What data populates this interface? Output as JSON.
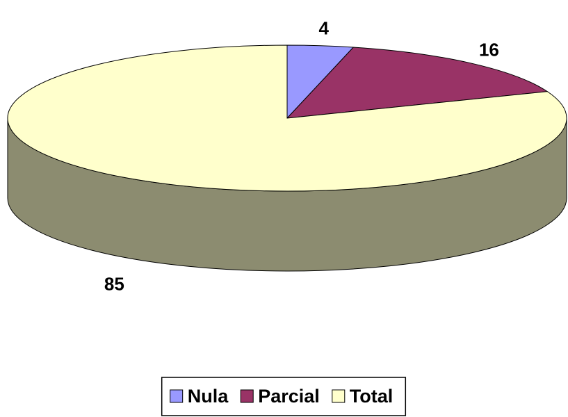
{
  "chart_data": {
    "type": "pie3d",
    "categories": [
      "Nula",
      "Parcial",
      "Total"
    ],
    "series": [
      {
        "values": [
          4,
          16,
          85
        ],
        "colors": [
          "#9999ff",
          "#993366",
          "#ffffcc"
        ]
      }
    ],
    "legend": "bottom"
  }
}
